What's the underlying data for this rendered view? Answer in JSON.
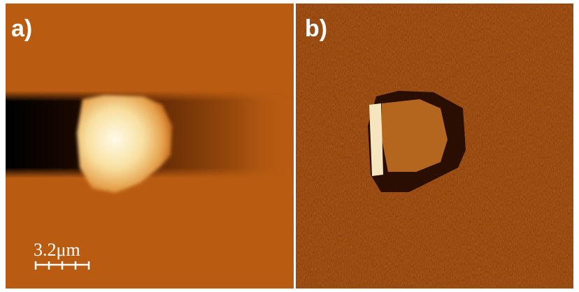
{
  "panels": [
    {
      "label": "a)"
    },
    {
      "label": "b)"
    }
  ],
  "scale_bar": {
    "label": "3.2μm"
  }
}
